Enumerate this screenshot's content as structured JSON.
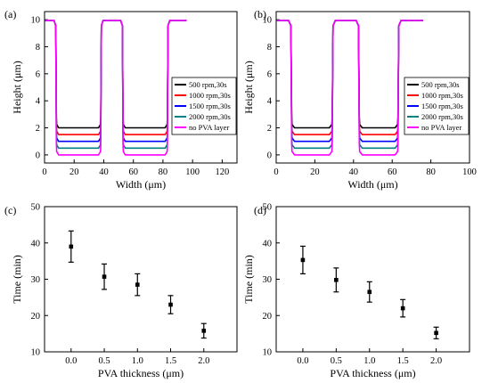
{
  "chart_data": [
    {
      "panel": "(a)",
      "type": "line",
      "xlabel": "Width (μm)",
      "ylabel": "Height (μm)",
      "xlim": [
        0,
        130
      ],
      "ylim": [
        -0.6,
        10.6
      ],
      "xticks": [
        0,
        20,
        40,
        60,
        80,
        100,
        120
      ],
      "yticks": [
        0,
        2,
        4,
        6,
        8,
        10
      ],
      "grid": false,
      "legend": "right",
      "trench_edges": [
        [
          8,
          38
        ],
        [
          53,
          83
        ]
      ],
      "x_end": 96,
      "series": [
        {
          "name": "500   rpm,30s",
          "color": "#000000",
          "floor": 2.0
        },
        {
          "name": "1000 rpm,30s",
          "color": "#ff0000",
          "floor": 1.5
        },
        {
          "name": "1500 rpm,30s",
          "color": "#0000ff",
          "floor": 1.0
        },
        {
          "name": "2000 rpm,30s",
          "color": "#008080",
          "floor": 0.5
        },
        {
          "name": "no PVA layer",
          "color": "#ff00ff",
          "floor": 0.0
        }
      ]
    },
    {
      "panel": "(b)",
      "type": "line",
      "xlabel": "Width (μm)",
      "ylabel": "Height (μm)",
      "xlim": [
        0,
        100
      ],
      "ylim": [
        -0.6,
        10.6
      ],
      "xticks": [
        0,
        20,
        40,
        60,
        80,
        100
      ],
      "yticks": [
        0,
        2,
        4,
        6,
        8,
        10
      ],
      "grid": false,
      "legend": "right",
      "trench_edges": [
        [
          8,
          29
        ],
        [
          43,
          63
        ]
      ],
      "x_end": 76,
      "series": [
        {
          "name": "500   rpm,30s",
          "color": "#000000",
          "floor": 2.0
        },
        {
          "name": "1000 rpm,30s",
          "color": "#ff0000",
          "floor": 1.5
        },
        {
          "name": "1500 rpm,30s",
          "color": "#0000ff",
          "floor": 1.0
        },
        {
          "name": "2000 rpm,30s",
          "color": "#008080",
          "floor": 0.5
        },
        {
          "name": "no PVA layer",
          "color": "#ff00ff",
          "floor": 0.0
        }
      ]
    },
    {
      "panel": "(c)",
      "type": "scatter",
      "xlabel": "PVA thickness (μm)",
      "ylabel": "Time (min)",
      "xlim": [
        -0.4,
        2.5
      ],
      "ylim": [
        10,
        50
      ],
      "xticks": [
        0.0,
        0.5,
        1.0,
        1.5,
        2.0
      ],
      "xtick_labels": [
        "0.0",
        "0.5",
        "1.0",
        "1.5",
        "2.0"
      ],
      "yticks": [
        10,
        20,
        30,
        40,
        50
      ],
      "grid": false,
      "points": [
        {
          "x": 0.0,
          "y": 39.0,
          "err": 4.3
        },
        {
          "x": 0.5,
          "y": 30.7,
          "err": 3.5
        },
        {
          "x": 1.0,
          "y": 28.5,
          "err": 3.0
        },
        {
          "x": 1.5,
          "y": 23.0,
          "err": 2.5
        },
        {
          "x": 2.0,
          "y": 15.8,
          "err": 2.0
        }
      ]
    },
    {
      "panel": "(d)",
      "type": "scatter",
      "xlabel": "PVA thickness (μm)",
      "ylabel": "Time (min)",
      "xlim": [
        -0.4,
        2.5
      ],
      "ylim": [
        10,
        50
      ],
      "xticks": [
        0.0,
        0.5,
        1.0,
        1.5,
        2.0
      ],
      "xtick_labels": [
        "0.0",
        "0.5",
        "1.0",
        "1.5",
        "2.0"
      ],
      "yticks": [
        10,
        20,
        30,
        40,
        50
      ],
      "grid": false,
      "points": [
        {
          "x": 0.0,
          "y": 35.3,
          "err": 3.8
        },
        {
          "x": 0.5,
          "y": 29.8,
          "err": 3.3
        },
        {
          "x": 1.0,
          "y": 26.5,
          "err": 2.8
        },
        {
          "x": 1.5,
          "y": 22.0,
          "err": 2.4
        },
        {
          "x": 2.0,
          "y": 15.2,
          "err": 1.6
        }
      ]
    }
  ]
}
